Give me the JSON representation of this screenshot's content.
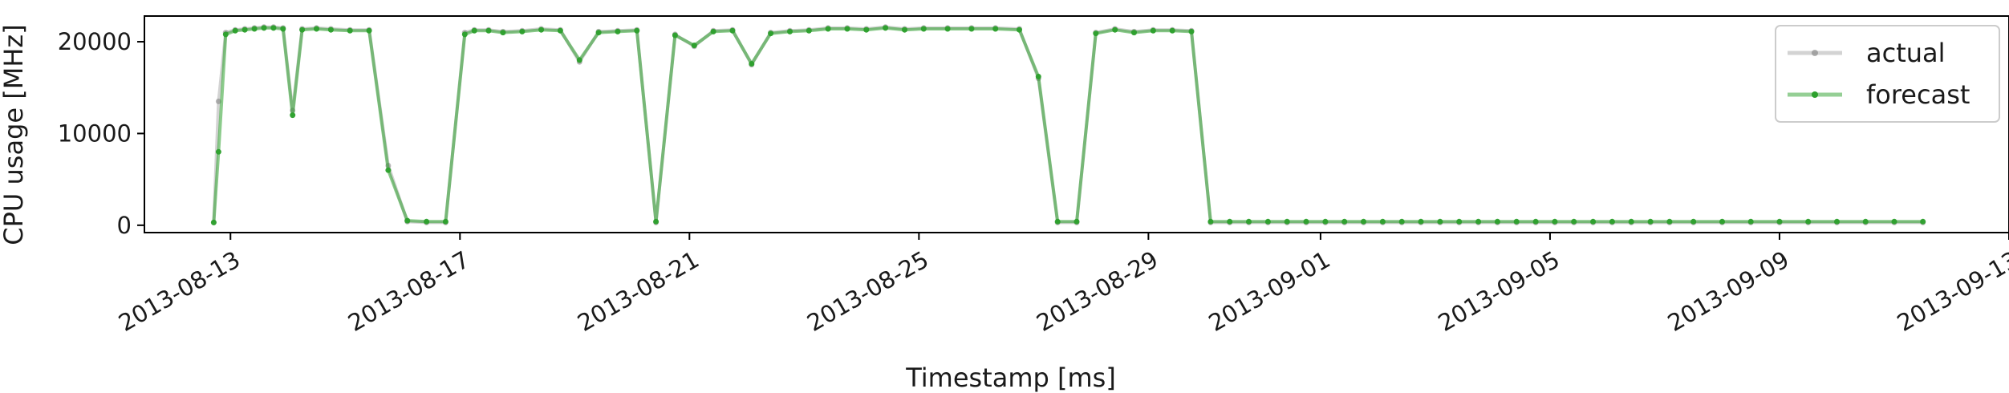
{
  "chart_data": {
    "type": "line",
    "xlabel": "Timestamp [ms]",
    "ylabel": "CPU usage [MHz]",
    "ylim": [
      -800,
      22800
    ],
    "xlim": [
      "2013-08-11T12:00",
      "2013-09-13T00:00"
    ],
    "yticks": [
      0,
      10000,
      20000
    ],
    "ytick_labels": [
      "0",
      "10000",
      "20000"
    ],
    "xticks": [
      "2013-08-13",
      "2013-08-17",
      "2013-08-21",
      "2013-08-25",
      "2013-08-29",
      "2013-09-01",
      "2013-09-05",
      "2013-09-09",
      "2013-09-13"
    ],
    "xtick_labels": [
      "2013-08-13",
      "2013-08-17",
      "2013-08-21",
      "2013-08-25",
      "2013-08-29",
      "2013-09-01",
      "2013-09-05",
      "2013-09-09",
      "2013-09-13"
    ],
    "grid": false,
    "legend_position": "top-right",
    "series": [
      {
        "name": "actual",
        "color": "#808080",
        "x": [
          "2013-08-12T17:00",
          "2013-08-12T19:00",
          "2013-08-12T22:00",
          "2013-08-13T02:00",
          "2013-08-13T06:00",
          "2013-08-13T10:00",
          "2013-08-13T14:00",
          "2013-08-13T18:00",
          "2013-08-13T22:00",
          "2013-08-14T02:00",
          "2013-08-14T06:00",
          "2013-08-14T12:00",
          "2013-08-14T18:00",
          "2013-08-15T02:00",
          "2013-08-15T10:00",
          "2013-08-15T18:00",
          "2013-08-16T02:00",
          "2013-08-16T10:00",
          "2013-08-16T18:00",
          "2013-08-17T02:00",
          "2013-08-17T06:00",
          "2013-08-17T12:00",
          "2013-08-17T18:00",
          "2013-08-18T02:00",
          "2013-08-18T10:00",
          "2013-08-18T18:00",
          "2013-08-19T02:00",
          "2013-08-19T10:00",
          "2013-08-19T18:00",
          "2013-08-20T02:00",
          "2013-08-20T10:00",
          "2013-08-20T18:00",
          "2013-08-21T02:00",
          "2013-08-21T10:00",
          "2013-08-21T18:00",
          "2013-08-22T02:00",
          "2013-08-22T10:00",
          "2013-08-22T18:00",
          "2013-08-23T02:00",
          "2013-08-23T10:00",
          "2013-08-23T18:00",
          "2013-08-24T02:00",
          "2013-08-24T10:00",
          "2013-08-24T18:00",
          "2013-08-25T02:00",
          "2013-08-25T12:00",
          "2013-08-25T22:00",
          "2013-08-26T08:00",
          "2013-08-26T18:00",
          "2013-08-27T02:00",
          "2013-08-27T10:00",
          "2013-08-27T18:00",
          "2013-08-28T02:00",
          "2013-08-28T10:00",
          "2013-08-28T18:00",
          "2013-08-29T02:00",
          "2013-08-29T10:00",
          "2013-08-29T18:00",
          "2013-08-30T02:00",
          "2013-08-30T10:00",
          "2013-08-30T18:00",
          "2013-08-31T02:00",
          "2013-08-31T10:00",
          "2013-08-31T18:00",
          "2013-09-01T02:00",
          "2013-09-01T10:00",
          "2013-09-01T18:00",
          "2013-09-02T02:00",
          "2013-09-02T10:00",
          "2013-09-02T18:00",
          "2013-09-03T02:00",
          "2013-09-03T10:00",
          "2013-09-03T18:00",
          "2013-09-04T02:00",
          "2013-09-04T10:00",
          "2013-09-04T18:00",
          "2013-09-05T02:00",
          "2013-09-05T10:00",
          "2013-09-05T18:00",
          "2013-09-06T02:00",
          "2013-09-06T10:00",
          "2013-09-06T18:00",
          "2013-09-07T02:00",
          "2013-09-07T12:00",
          "2013-09-08T00:00",
          "2013-09-08T12:00",
          "2013-09-09T00:00",
          "2013-09-09T12:00",
          "2013-09-10T00:00",
          "2013-09-10T12:00",
          "2013-09-11T00:00",
          "2013-09-11T12:00"
        ],
        "y": [
          300,
          13500,
          21000,
          21300,
          21400,
          21500,
          21600,
          21600,
          21500,
          12500,
          21400,
          21500,
          21400,
          21300,
          21300,
          6500,
          400,
          300,
          300,
          21000,
          21300,
          21300,
          21100,
          21200,
          21400,
          21300,
          17800,
          21100,
          21200,
          21300,
          300,
          20800,
          19500,
          21200,
          21300,
          17500,
          21000,
          21200,
          21300,
          21500,
          21500,
          21400,
          21600,
          21400,
          21500,
          21500,
          21500,
          21500,
          21400,
          16000,
          300,
          300,
          21000,
          21400,
          21100,
          21300,
          21300,
          21200,
          300,
          300,
          300,
          300,
          300,
          300,
          300,
          300,
          300,
          300,
          300,
          300,
          300,
          300,
          300,
          300,
          300,
          300,
          300,
          300,
          300,
          300,
          300,
          300,
          300,
          300,
          300,
          300,
          300,
          300,
          300,
          300,
          300,
          300
        ]
      },
      {
        "name": "forecast",
        "color": "#2ca02c",
        "x": [
          "2013-08-12T17:00",
          "2013-08-12T19:00",
          "2013-08-12T22:00",
          "2013-08-13T02:00",
          "2013-08-13T06:00",
          "2013-08-13T10:00",
          "2013-08-13T14:00",
          "2013-08-13T18:00",
          "2013-08-13T22:00",
          "2013-08-14T02:00",
          "2013-08-14T06:00",
          "2013-08-14T12:00",
          "2013-08-14T18:00",
          "2013-08-15T02:00",
          "2013-08-15T10:00",
          "2013-08-15T18:00",
          "2013-08-16T02:00",
          "2013-08-16T10:00",
          "2013-08-16T18:00",
          "2013-08-17T02:00",
          "2013-08-17T06:00",
          "2013-08-17T12:00",
          "2013-08-17T18:00",
          "2013-08-18T02:00",
          "2013-08-18T10:00",
          "2013-08-18T18:00",
          "2013-08-19T02:00",
          "2013-08-19T10:00",
          "2013-08-19T18:00",
          "2013-08-20T02:00",
          "2013-08-20T10:00",
          "2013-08-20T18:00",
          "2013-08-21T02:00",
          "2013-08-21T10:00",
          "2013-08-21T18:00",
          "2013-08-22T02:00",
          "2013-08-22T10:00",
          "2013-08-22T18:00",
          "2013-08-23T02:00",
          "2013-08-23T10:00",
          "2013-08-23T18:00",
          "2013-08-24T02:00",
          "2013-08-24T10:00",
          "2013-08-24T18:00",
          "2013-08-25T02:00",
          "2013-08-25T12:00",
          "2013-08-25T22:00",
          "2013-08-26T08:00",
          "2013-08-26T18:00",
          "2013-08-27T02:00",
          "2013-08-27T10:00",
          "2013-08-27T18:00",
          "2013-08-28T02:00",
          "2013-08-28T10:00",
          "2013-08-28T18:00",
          "2013-08-29T02:00",
          "2013-08-29T10:00",
          "2013-08-29T18:00",
          "2013-08-30T02:00",
          "2013-08-30T10:00",
          "2013-08-30T18:00",
          "2013-08-31T02:00",
          "2013-08-31T10:00",
          "2013-08-31T18:00",
          "2013-09-01T02:00",
          "2013-09-01T10:00",
          "2013-09-01T18:00",
          "2013-09-02T02:00",
          "2013-09-02T10:00",
          "2013-09-02T18:00",
          "2013-09-03T02:00",
          "2013-09-03T10:00",
          "2013-09-03T18:00",
          "2013-09-04T02:00",
          "2013-09-04T10:00",
          "2013-09-04T18:00",
          "2013-09-05T02:00",
          "2013-09-05T10:00",
          "2013-09-05T18:00",
          "2013-09-06T02:00",
          "2013-09-06T10:00",
          "2013-09-06T18:00",
          "2013-09-07T02:00",
          "2013-09-07T12:00",
          "2013-09-08T00:00",
          "2013-09-08T12:00",
          "2013-09-09T00:00",
          "2013-09-09T12:00",
          "2013-09-10T00:00",
          "2013-09-10T12:00",
          "2013-09-11T00:00",
          "2013-09-11T12:00"
        ],
        "y": [
          300,
          8000,
          20800,
          21200,
          21300,
          21400,
          21500,
          21500,
          21400,
          12000,
          21300,
          21400,
          21300,
          21200,
          21200,
          6000,
          500,
          400,
          400,
          20800,
          21200,
          21200,
          21000,
          21100,
          21300,
          21200,
          18000,
          21000,
          21100,
          21200,
          400,
          20700,
          19600,
          21100,
          21200,
          17600,
          20900,
          21100,
          21200,
          21400,
          21400,
          21300,
          21500,
          21300,
          21400,
          21400,
          21400,
          21400,
          21300,
          16200,
          400,
          400,
          20900,
          21300,
          21000,
          21200,
          21200,
          21100,
          400,
          400,
          400,
          400,
          400,
          400,
          400,
          400,
          400,
          400,
          400,
          400,
          400,
          400,
          400,
          400,
          400,
          400,
          400,
          400,
          400,
          400,
          400,
          400,
          400,
          400,
          400,
          400,
          400,
          400,
          400,
          400,
          400,
          400
        ]
      }
    ]
  }
}
